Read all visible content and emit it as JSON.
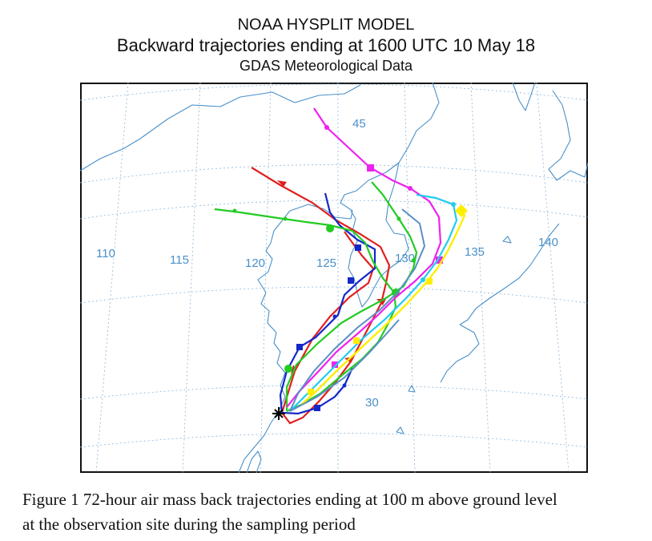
{
  "header": {
    "title": "NOAA HYSPLIT MODEL",
    "subtitle": "Backward trajectories ending at 1600 UTC 10 May 18",
    "data_source": "GDAS Meteorological Data"
  },
  "map": {
    "longitude_labels": [
      "110",
      "115",
      "120",
      "125",
      "130",
      "135",
      "140"
    ],
    "latitude_labels": [
      "45",
      "30"
    ],
    "start_marker": "observation-site-star",
    "colors": {
      "coast": "#4a90c8",
      "grid": "#8cb6d8",
      "red": "#e02020",
      "blue": "#1428c8",
      "green": "#22cc22",
      "magenta": "#ee22ee",
      "cyan": "#22ccee",
      "yellow": "#ffee00",
      "steel": "#5a8fc4"
    }
  },
  "caption": {
    "line1": "Figure 1  72-hour air mass back trajectories ending at 100 m above ground level",
    "line2": "at the observation site during the sampling period"
  }
}
